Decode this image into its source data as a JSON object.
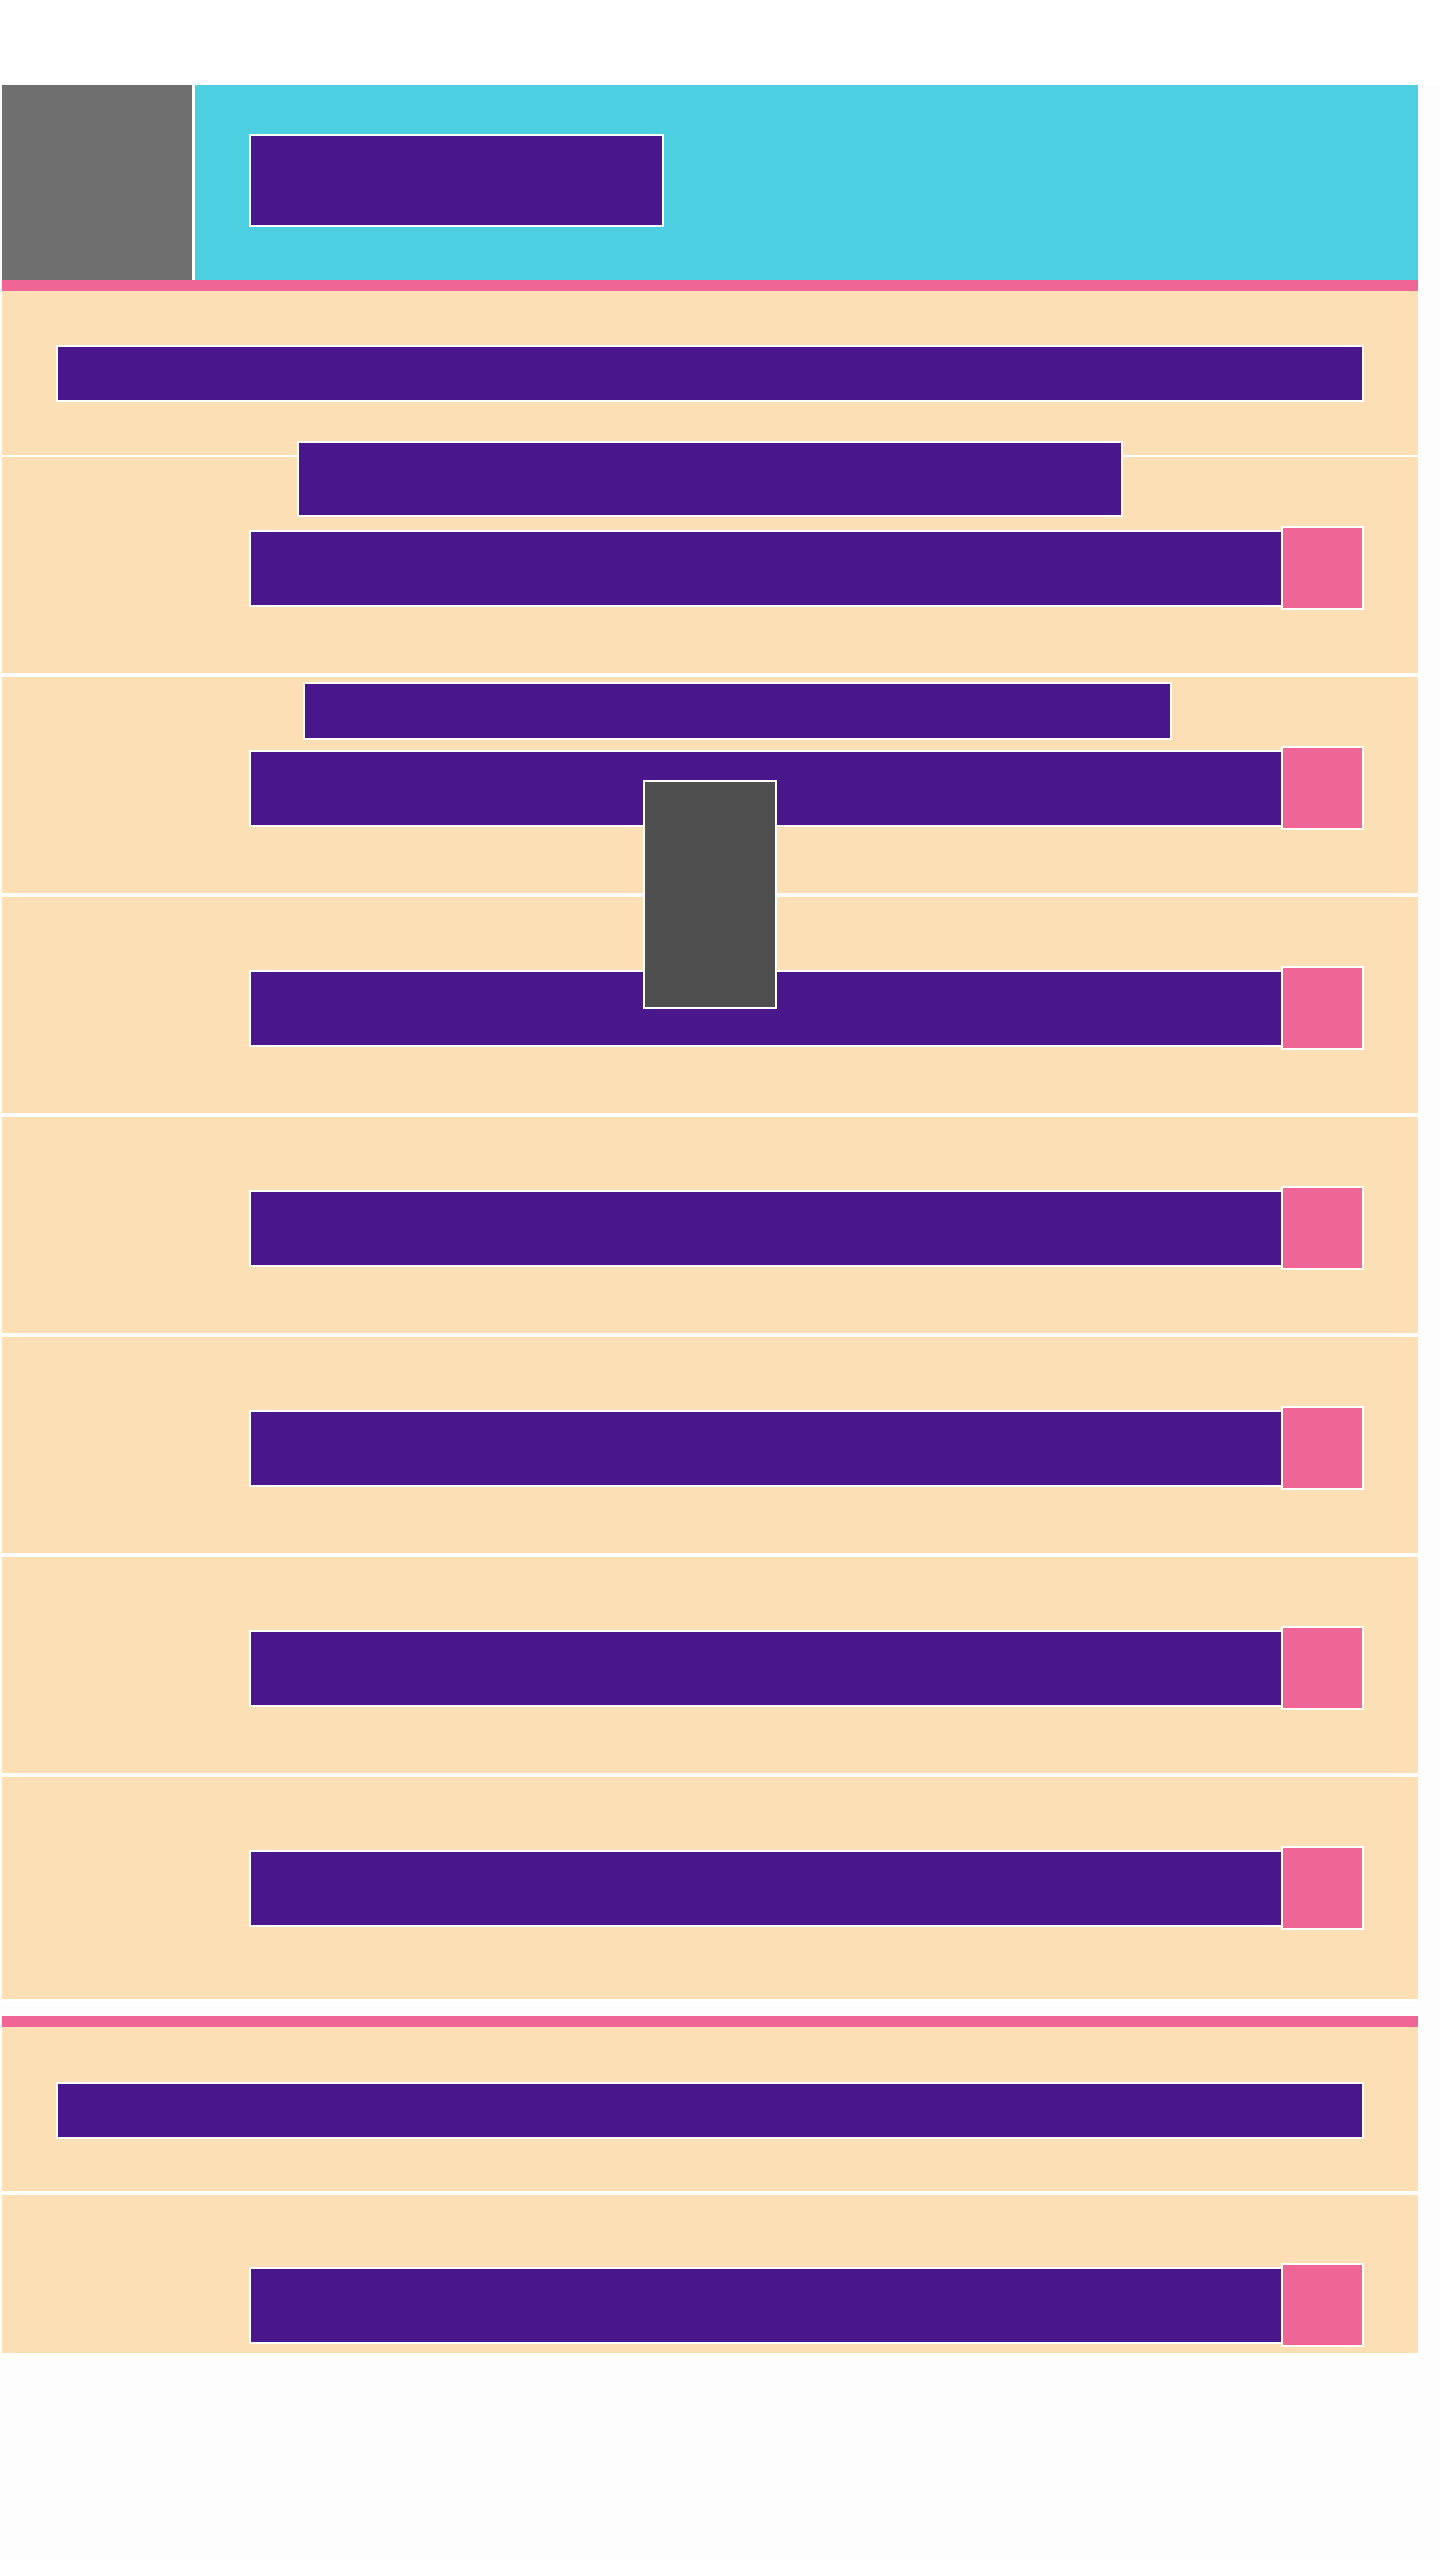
{
  "colors": {
    "header_background": "#4bcfe1",
    "thumbnail": "#6f6f6f",
    "placeholder_block": "#4a168c",
    "accent": "#ef6696",
    "section_background": "#fcdfb4",
    "floating_panel": "#4f4f4f",
    "separator": "#ffffff",
    "page_background": "#fdfdfd"
  },
  "header": {
    "title": ""
  },
  "sections": [
    {
      "heading": "",
      "rows": [
        {
          "label": "",
          "value": ""
        },
        {
          "label": "",
          "value": ""
        },
        {
          "label": "",
          "value": ""
        },
        {
          "label": "",
          "value": ""
        },
        {
          "label": "",
          "value": ""
        },
        {
          "label": "",
          "value": ""
        },
        {
          "label": "",
          "value": ""
        }
      ]
    },
    {
      "heading": "",
      "rows": [
        {
          "label": "",
          "value": ""
        }
      ]
    }
  ],
  "row_button_icon": "",
  "floating_panel": {
    "visible": true
  }
}
